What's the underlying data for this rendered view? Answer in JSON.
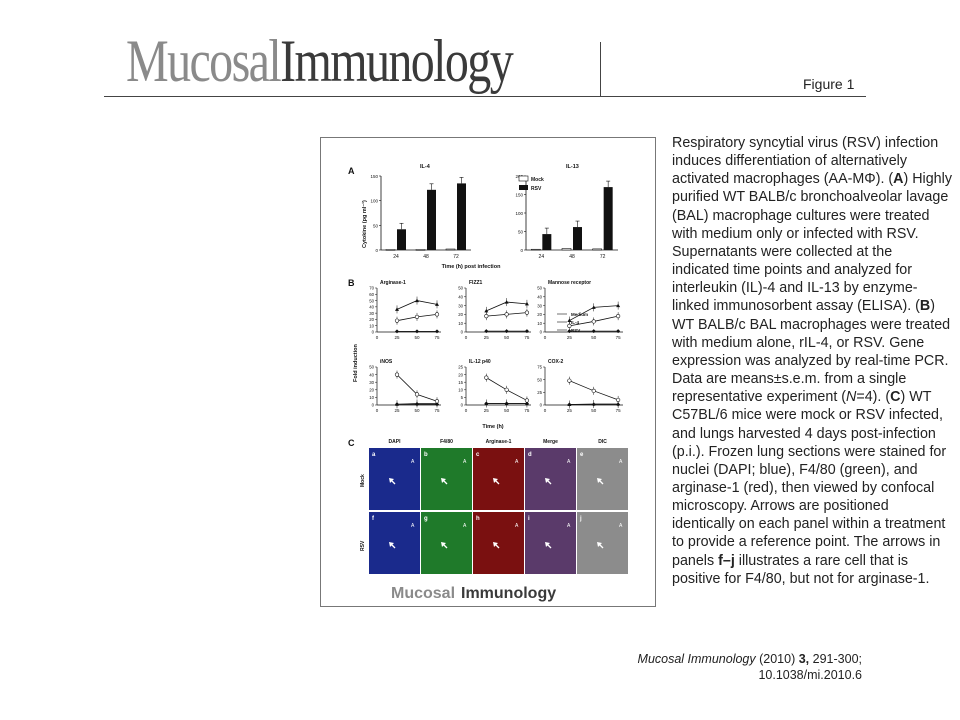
{
  "header": {
    "logo_part1": "Mucosal",
    "logo_part2": "Immunology",
    "figure_label": "Figure 1"
  },
  "caption": {
    "s1": "Respiratory syncytial virus (RSV) infection induces differentiation of alternatively activated macrophages (AA-MΦ). (",
    "lA": "A",
    "s2": ") Highly purified WT BALB/c bronchoalveolar lavage (BAL) macrophage cultures were treated with medium only or infected with RSV. Supernatants were collected at the indicated time points and analyzed for interleukin (IL)-4 and IL-13 by enzyme-linked immunosorbent assay (ELISA). (",
    "lB": "B",
    "s3": ") WT BALB/c BAL macrophages were treated with medium alone, rIL-4, or RSV. Gene expression was analyzed by real-time PCR. Data are means±s.e.m. from a single representative experiment (",
    "n_italic": "N",
    "s4": "=4). (",
    "lC": "C",
    "s5": ") WT C57BL/6 mice were mock or RSV infected, and lungs harvested 4 days post-infection (p.i.). Frozen lung sections were stained for nuclei (DAPI; blue), F4/80 (green), and arginase-1 (red), then viewed by confocal microscopy. Arrows are positioned identically on each panel within a treatment to provide a reference point. The arrows in panels ",
    "panels_bold": "f–j",
    "s6": " illustrates a rare cell that is positive for F4/80, but not for arginase-1."
  },
  "citation": {
    "journal": "Mucosal Immunology",
    "year": " (2010) ",
    "volume": "3,",
    "pages": " 291-300;",
    "doi": "10.1038/mi.2010.6"
  },
  "figure": {
    "panel_A": {
      "letter": "A",
      "ylabel": "Cytokine (pg ml⁻¹)",
      "xlabel": "Time (h) post infection",
      "yticks": [
        "0",
        "50",
        "100",
        "150"
      ],
      "legend": [
        "Mock",
        "RSV"
      ],
      "charts": [
        {
          "title": "IL-4",
          "ylim": [
            0,
            150
          ],
          "x": [
            "24",
            "48",
            "72"
          ],
          "mock": [
            1,
            1,
            2
          ],
          "rsv": [
            42,
            122,
            135
          ]
        },
        {
          "title": "IL-13",
          "ylim": [
            0,
            200
          ],
          "x": [
            "24",
            "48",
            "72"
          ],
          "mock": [
            2,
            4,
            3
          ],
          "rsv": [
            43,
            62,
            170
          ]
        }
      ],
      "yticks_il13": [
        "0",
        "50",
        "100",
        "150",
        "200"
      ]
    },
    "panel_B": {
      "letter": "B",
      "ylabel": "Fold induction",
      "xlabel": "Time (h)",
      "legend": [
        "Medium",
        "IL-4",
        "RSV"
      ],
      "x": [
        5,
        25,
        50,
        75
      ],
      "xticks": [
        "0",
        "25",
        "50",
        "75"
      ],
      "charts": [
        {
          "title": "Arginase-1",
          "ylim": [
            0,
            70
          ],
          "yticks": [
            "0",
            "10",
            "20",
            "30",
            "40",
            "50",
            "60",
            "70"
          ],
          "medium": [
            null,
            1,
            1,
            1
          ],
          "il4": [
            null,
            36,
            50,
            44
          ],
          "rsv": [
            null,
            18,
            24,
            28
          ]
        },
        {
          "title": "FIZZ1",
          "ylim": [
            0,
            50
          ],
          "yticks": [
            "0",
            "10",
            "20",
            "30",
            "40",
            "50"
          ],
          "medium": [
            null,
            1,
            1,
            1
          ],
          "il4": [
            null,
            24,
            34,
            32
          ],
          "rsv": [
            null,
            18,
            20,
            22
          ]
        },
        {
          "title": "Mannose receptor",
          "ylim": [
            0,
            50
          ],
          "yticks": [
            "0",
            "10",
            "20",
            "30",
            "40",
            "50"
          ],
          "medium": [
            null,
            1,
            1,
            1
          ],
          "il4": [
            null,
            13,
            28,
            30
          ],
          "rsv": [
            null,
            7,
            12,
            18
          ]
        },
        {
          "title": "iNOS",
          "ylim": [
            0,
            50
          ],
          "yticks": [
            "0",
            "10",
            "20",
            "30",
            "40",
            "50"
          ],
          "medium": [
            null,
            1,
            1,
            1
          ],
          "il4": [
            null,
            1,
            2,
            2
          ],
          "rsv": [
            null,
            40,
            14,
            5
          ]
        },
        {
          "title": "IL-12 p40",
          "ylim": [
            0,
            25
          ],
          "yticks": [
            "0",
            "5",
            "10",
            "15",
            "20",
            "25"
          ],
          "medium": [
            null,
            1,
            1,
            1
          ],
          "il4": [
            null,
            1,
            1,
            1
          ],
          "rsv": [
            null,
            18,
            10,
            3
          ]
        },
        {
          "title": "COX-2",
          "ylim": [
            0,
            75
          ],
          "yticks": [
            "0",
            "25",
            "50",
            "75"
          ],
          "medium": [
            null,
            1,
            1,
            1
          ],
          "il4": [
            null,
            1,
            2,
            2
          ],
          "rsv": [
            null,
            48,
            28,
            10
          ]
        }
      ]
    },
    "panel_C": {
      "letter": "C",
      "columns": [
        "DAPI",
        "F4/80",
        "Arginase-1",
        "Merge",
        "DIC"
      ],
      "rows": [
        "Mock",
        "RSV"
      ],
      "tile_letters": [
        "a",
        "b",
        "c",
        "d",
        "e",
        "f",
        "g",
        "h",
        "i",
        "j"
      ],
      "marker": "A",
      "colors": [
        "#1a2a8c",
        "#1f7a2a",
        "#7a1010",
        "#5a3a6a",
        "#8c8c8c"
      ]
    },
    "footer_part1": "Mucosal",
    "footer_part2": "Immunology"
  }
}
